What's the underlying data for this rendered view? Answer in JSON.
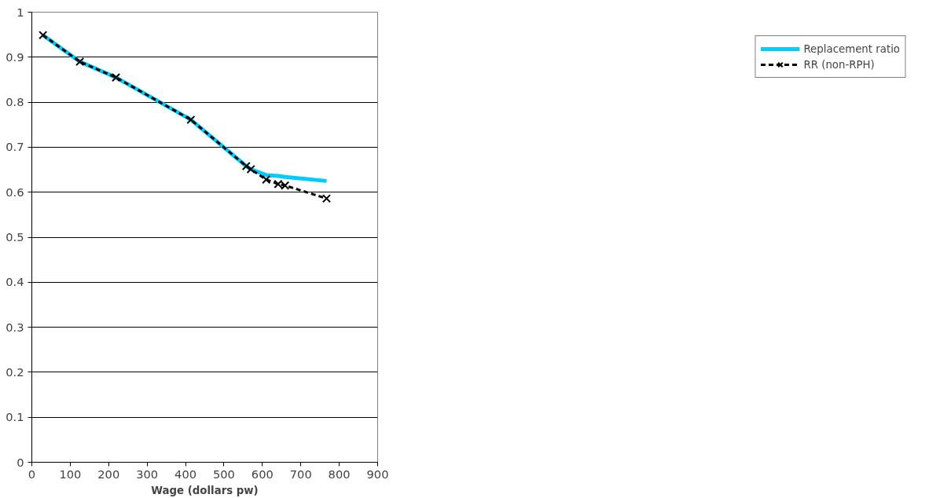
{
  "chart_data": {
    "type": "line",
    "xlabel": "Wage (dollars pw)",
    "x": [
      29,
      125,
      219,
      414,
      558,
      570,
      610,
      641,
      659,
      767
    ],
    "series": [
      {
        "name": "Replacement ratio",
        "color": "#00ccff",
        "values": [
          0.949,
          0.89,
          0.855,
          0.761,
          0.658,
          0.651,
          0.638,
          0.636,
          0.634,
          0.625
        ],
        "line_style": "solid",
        "marker": "none"
      },
      {
        "name": "RR (non-RPH)",
        "color": "#000000",
        "values": [
          0.949,
          0.89,
          0.855,
          0.761,
          0.658,
          0.651,
          0.628,
          0.618,
          0.615,
          0.586
        ],
        "line_style": "dashed",
        "marker": "cross"
      }
    ],
    "xlim": [
      0,
      900
    ],
    "xticks": [
      0,
      100,
      200,
      300,
      400,
      500,
      600,
      700,
      800,
      900
    ],
    "ylim": [
      0,
      1
    ],
    "yticks": [
      0,
      0.1,
      0.2,
      0.3,
      0.4,
      0.5,
      0.6,
      0.7,
      0.8,
      0.9,
      1
    ],
    "grid": "y",
    "legend": "right"
  }
}
